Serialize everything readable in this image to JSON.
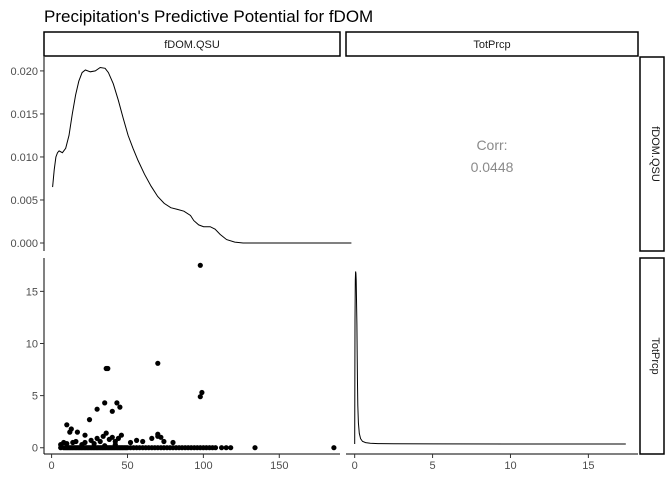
{
  "chart_data": {
    "type": "scatter-matrix",
    "title": "Precipitation's Predictive Potential for fDOM",
    "variables": [
      "fDOM.QSU",
      "TotPrcp"
    ],
    "correlation": {
      "label": "Corr:",
      "value": "0.0448"
    },
    "panels": {
      "fdom_density": {
        "type": "density",
        "xlim": [
          0,
          190
        ],
        "ylim": [
          0,
          0.0215
        ],
        "yticks": [
          0.0,
          0.005,
          0.01,
          0.015,
          0.02
        ],
        "ytick_labels": [
          "0.000",
          "0.005",
          "0.010",
          "0.015",
          "0.020"
        ],
        "points": [
          [
            4,
            0.0065
          ],
          [
            5,
            0.0085
          ],
          [
            6,
            0.01
          ],
          [
            7,
            0.0105
          ],
          [
            8,
            0.0107
          ],
          [
            10,
            0.0105
          ],
          [
            12,
            0.011
          ],
          [
            14,
            0.0125
          ],
          [
            16,
            0.015
          ],
          [
            18,
            0.0172
          ],
          [
            20,
            0.0188
          ],
          [
            22,
            0.0198
          ],
          [
            24,
            0.0201
          ],
          [
            27,
            0.0199
          ],
          [
            30,
            0.02
          ],
          [
            33,
            0.0204
          ],
          [
            36,
            0.0203
          ],
          [
            38,
            0.0198
          ],
          [
            41,
            0.0185
          ],
          [
            44,
            0.0166
          ],
          [
            47,
            0.0145
          ],
          [
            50,
            0.0125
          ],
          [
            53,
            0.011
          ],
          [
            56,
            0.0096
          ],
          [
            60,
            0.008
          ],
          [
            64,
            0.0066
          ],
          [
            68,
            0.0054
          ],
          [
            72,
            0.0046
          ],
          [
            76,
            0.0041
          ],
          [
            80,
            0.0039
          ],
          [
            84,
            0.0037
          ],
          [
            88,
            0.0032
          ],
          [
            90,
            0.0026
          ],
          [
            93,
            0.0021
          ],
          [
            96,
            0.0019
          ],
          [
            100,
            0.0019
          ],
          [
            103,
            0.0016
          ],
          [
            106,
            0.001
          ],
          [
            110,
            0.0004
          ],
          [
            115,
            0.0001
          ],
          [
            120,
            0.0
          ],
          [
            186,
            0.0
          ]
        ]
      },
      "prcp_density": {
        "type": "density",
        "xlim": [
          0,
          17.5
        ],
        "ylim": [
          0,
          1.0
        ],
        "points": [
          [
            0,
            0.0
          ],
          [
            0.02,
            0.7
          ],
          [
            0.04,
            0.93
          ],
          [
            0.06,
            0.98
          ],
          [
            0.08,
            0.97
          ],
          [
            0.1,
            0.93
          ],
          [
            0.12,
            0.82
          ],
          [
            0.14,
            0.68
          ],
          [
            0.16,
            0.5
          ],
          [
            0.18,
            0.34
          ],
          [
            0.2,
            0.22
          ],
          [
            0.24,
            0.12
          ],
          [
            0.3,
            0.06
          ],
          [
            0.38,
            0.03
          ],
          [
            0.5,
            0.015
          ],
          [
            0.7,
            0.008
          ],
          [
            1.0,
            0.004
          ],
          [
            1.5,
            0.002
          ],
          [
            2.5,
            0.001
          ],
          [
            5,
            0.0005
          ],
          [
            10,
            0.0002
          ],
          [
            17.4,
            0.0001
          ]
        ]
      },
      "scatter": {
        "type": "scatter",
        "xlim": [
          -5,
          190
        ],
        "ylim": [
          -0.6,
          18.2
        ],
        "xticks": [
          0,
          50,
          100,
          150
        ],
        "yticks": [
          0,
          5,
          10,
          15
        ],
        "x": [
          6,
          8,
          9,
          10,
          11,
          12,
          13,
          14,
          15,
          16,
          17,
          18,
          19,
          20,
          21,
          22,
          23,
          24,
          25,
          26,
          27,
          28,
          29,
          30,
          31,
          32,
          33,
          34,
          35,
          36,
          37,
          38,
          39,
          40,
          41,
          42,
          43,
          44,
          45,
          46,
          47,
          48,
          49,
          50,
          52,
          54,
          56,
          58,
          60,
          62,
          64,
          66,
          68,
          70,
          72,
          74,
          76,
          78,
          80,
          82,
          84,
          86,
          88,
          90,
          92,
          94,
          96,
          98,
          100,
          102,
          104,
          106,
          108,
          112,
          115,
          118,
          134,
          186,
          10,
          14,
          16,
          20,
          22,
          26,
          28,
          30,
          32,
          34,
          36,
          38,
          40,
          42,
          44,
          46,
          52,
          56,
          60,
          66,
          70,
          72,
          74,
          80,
          6,
          8,
          12,
          10,
          13,
          17,
          22,
          25,
          30,
          35,
          40,
          70,
          98,
          99,
          36,
          37,
          43,
          45,
          35,
          42,
          70,
          98
        ],
        "y": [
          0,
          0,
          0,
          0,
          0,
          0,
          0,
          0,
          0,
          0,
          0,
          0,
          0,
          0,
          0,
          0,
          0,
          0,
          0,
          0,
          0,
          0,
          0,
          0,
          0,
          0,
          0,
          0,
          0,
          0,
          0,
          0,
          0,
          0,
          0,
          0,
          0,
          0,
          0,
          0,
          0,
          0,
          0,
          0,
          0,
          0,
          0,
          0,
          0,
          0,
          0,
          0,
          0,
          0,
          0,
          0,
          0,
          0,
          0,
          0,
          0,
          0,
          0,
          0,
          0,
          0,
          0,
          0,
          0,
          0,
          0,
          0,
          0,
          0,
          0,
          0,
          0,
          0,
          0.4,
          0.5,
          0.6,
          0.3,
          0.5,
          0.7,
          0.4,
          0.9,
          0.6,
          1.1,
          1.4,
          0.8,
          1.0,
          0.6,
          0.9,
          1.2,
          0.5,
          0.7,
          0.6,
          0.9,
          1.3,
          1.0,
          0.6,
          0.5,
          0.3,
          0.5,
          1.5,
          2.2,
          1.8,
          1.5,
          1.2,
          2.7,
          3.7,
          4.3,
          3.5,
          1.1,
          4.9,
          5.3,
          7.6,
          7.6,
          4.3,
          3.9,
          0.2,
          0.3,
          8.1,
          17.5
        ]
      },
      "scatter_xtick_labels": [
        "0",
        "50",
        "100",
        "150"
      ],
      "scatter_ytick_labels": [
        "0",
        "5",
        "10",
        "15"
      ],
      "prcp_xticks": [
        0,
        5,
        10,
        15
      ],
      "prcp_xtick_labels": [
        "0",
        "5",
        "10",
        "15"
      ]
    }
  }
}
